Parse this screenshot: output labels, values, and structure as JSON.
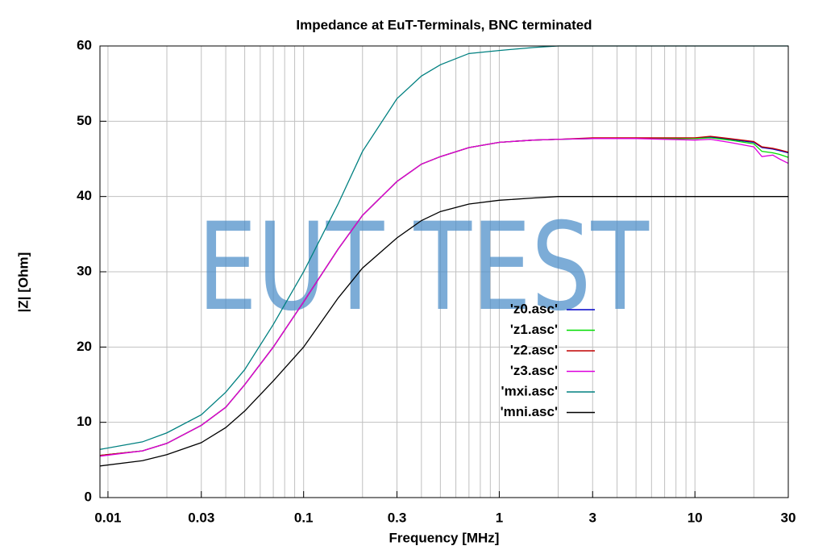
{
  "chart_data": {
    "type": "line",
    "title": "Impedance at EuT-Terminals, BNC terminated",
    "x_label": "Frequency [MHz]",
    "y_label": "|Z| [Ohm]",
    "watermark": "EUT TEST",
    "log_x": true,
    "grid": true,
    "xlim": [
      0.0091,
      30
    ],
    "ylim": [
      0,
      60
    ],
    "xticks": [
      0.01,
      0.03,
      0.1,
      0.3,
      1,
      3,
      10,
      30
    ],
    "xgrid": [
      0.01,
      0.02,
      0.03,
      0.04,
      0.05,
      0.06,
      0.07,
      0.08,
      0.09,
      0.1,
      0.2,
      0.3,
      0.4,
      0.5,
      0.6,
      0.7,
      0.8,
      0.9,
      1,
      2,
      3,
      4,
      5,
      6,
      7,
      8,
      9,
      10,
      20,
      30
    ],
    "yticks": [
      0,
      10,
      20,
      30,
      40,
      50,
      60
    ],
    "x": [
      0.0091,
      0.015,
      0.02,
      0.03,
      0.04,
      0.05,
      0.07,
      0.1,
      0.15,
      0.2,
      0.3,
      0.4,
      0.5,
      0.7,
      1,
      1.5,
      2,
      3,
      5,
      10,
      12,
      15,
      20,
      22,
      25,
      27,
      30
    ],
    "series": [
      {
        "name": "'z0.asc'",
        "color": "#0000c8",
        "values": [
          5.6,
          6.2,
          7.2,
          9.6,
          12,
          15,
          20,
          26,
          33,
          37.5,
          42,
          44.3,
          45.3,
          46.5,
          47.2,
          47.5,
          47.6,
          47.7,
          47.7,
          47.7,
          47.9,
          47.6,
          47.2,
          46.5,
          46.3,
          46.1,
          45.8
        ]
      },
      {
        "name": "'z1.asc'",
        "color": "#00dd00",
        "values": [
          5.6,
          6.2,
          7.2,
          9.6,
          12,
          15,
          20,
          26,
          33,
          37.5,
          42,
          44.3,
          45.3,
          46.5,
          47.2,
          47.5,
          47.6,
          47.7,
          47.7,
          47.7,
          47.8,
          47.5,
          47.0,
          46.0,
          45.8,
          45.6,
          45.2
        ]
      },
      {
        "name": "'z2.asc'",
        "color": "#c00000",
        "values": [
          5.6,
          6.2,
          7.2,
          9.6,
          12,
          15,
          20,
          26,
          33,
          37.5,
          42,
          44.3,
          45.3,
          46.5,
          47.2,
          47.5,
          47.6,
          47.8,
          47.8,
          47.8,
          48.0,
          47.7,
          47.3,
          46.6,
          46.4,
          46.2,
          45.9
        ]
      },
      {
        "name": "'z3.asc'",
        "color": "#dd00dd",
        "values": [
          5.5,
          6.2,
          7.2,
          9.6,
          12,
          15,
          20,
          26,
          33,
          37.5,
          42,
          44.3,
          45.3,
          46.5,
          47.2,
          47.5,
          47.6,
          47.7,
          47.7,
          47.5,
          47.6,
          47.2,
          46.6,
          45.3,
          45.5,
          45.0,
          44.4
        ]
      },
      {
        "name": "'mxi.asc'",
        "color": "#008080",
        "values": [
          6.4,
          7.4,
          8.6,
          11,
          14,
          17,
          23,
          30,
          39,
          46,
          53,
          56,
          57.5,
          59,
          59.4,
          59.8,
          60,
          60,
          60,
          60,
          60,
          60,
          60,
          60,
          60,
          60,
          60
        ]
      },
      {
        "name": "'mni.asc'",
        "color": "#000000",
        "values": [
          4.2,
          4.9,
          5.7,
          7.3,
          9.3,
          11.5,
          15.5,
          20,
          26.5,
          30.5,
          34.5,
          36.8,
          38,
          39,
          39.5,
          39.8,
          40,
          40,
          40,
          40,
          40,
          40,
          40,
          40,
          40,
          40,
          40
        ]
      }
    ]
  }
}
